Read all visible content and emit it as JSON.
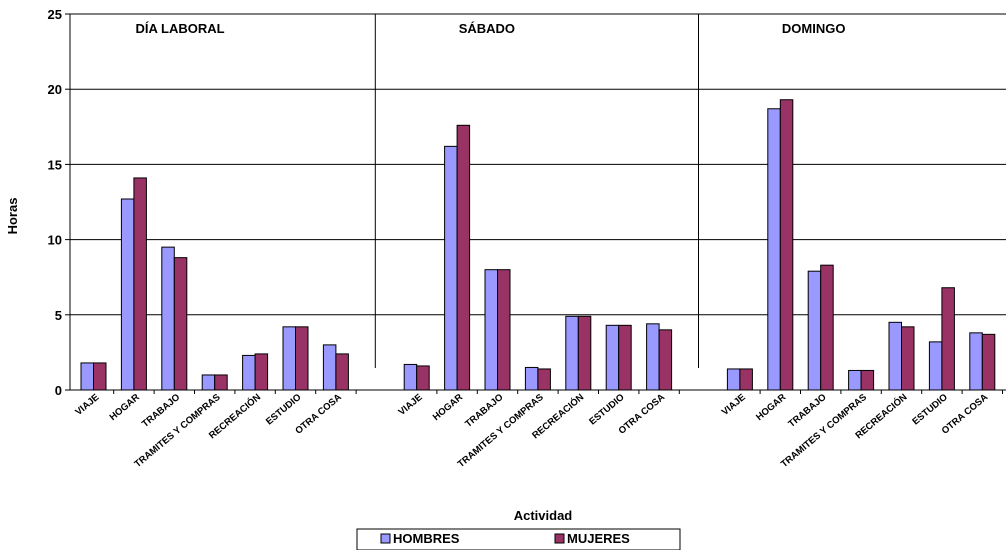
{
  "chart_data": {
    "type": "bar",
    "ylabel": "Horas",
    "xlabel": "Actividad",
    "ylim": [
      0,
      25
    ],
    "yticks": [
      "0",
      "5",
      "10",
      "15",
      "20",
      "25"
    ],
    "grid": true,
    "legend_position": "bottom",
    "colors": {
      "HOMBRES": "#9999ff",
      "MUJERES": "#993366"
    },
    "categories": [
      "VIAJE",
      "HOGAR",
      "TRABAJO",
      "TRAMITES Y COMPRAS",
      "RECREACIÓN",
      "ESTUDIO",
      "OTRA COSA"
    ],
    "groups": [
      {
        "title": "DÍA LABORAL",
        "series": [
          {
            "name": "HOMBRES",
            "values": [
              1.8,
              12.7,
              9.5,
              1.0,
              2.3,
              4.2,
              3.0
            ]
          },
          {
            "name": "MUJERES",
            "values": [
              1.8,
              14.1,
              8.8,
              1.0,
              2.4,
              4.2,
              2.4
            ]
          }
        ]
      },
      {
        "title": "SÁBADO",
        "series": [
          {
            "name": "HOMBRES",
            "values": [
              1.7,
              16.2,
              8.0,
              1.5,
              4.9,
              4.3,
              4.4
            ]
          },
          {
            "name": "MUJERES",
            "values": [
              1.6,
              17.6,
              8.0,
              1.4,
              4.9,
              4.3,
              4.0
            ]
          }
        ]
      },
      {
        "title": "DOMINGO",
        "series": [
          {
            "name": "HOMBRES",
            "values": [
              1.4,
              18.7,
              7.9,
              1.3,
              4.5,
              3.2,
              3.8
            ]
          },
          {
            "name": "MUJERES",
            "values": [
              1.4,
              19.3,
              8.3,
              1.3,
              4.2,
              6.8,
              3.7
            ]
          }
        ]
      }
    ]
  }
}
